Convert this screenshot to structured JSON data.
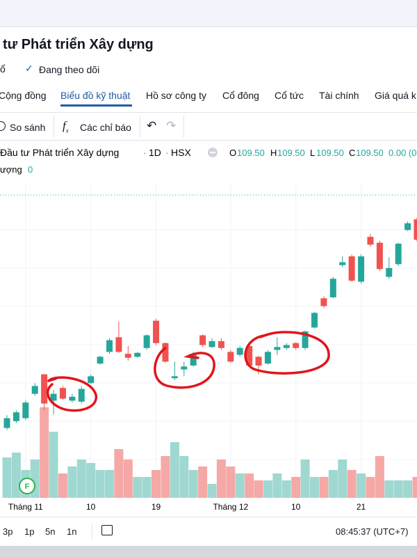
{
  "header": {
    "title": "tư Phát triển Xây dựng",
    "button": "ổ",
    "following": "Đang theo dõi"
  },
  "tabs": [
    "Cộng đồng",
    "Biểu đồ kỹ thuật",
    "Hồ sơ công ty",
    "Cổ đông",
    "Cổ tức",
    "Tài chính",
    "Giá quá k"
  ],
  "toolbar": {
    "compare": "So sánh",
    "indicators": "Các chỉ báo"
  },
  "legend": {
    "symbol": "Đầu tư Phát triển Xây dựng",
    "interval": "1D",
    "exchange": "HSX",
    "o_label": "O",
    "o": "109.50",
    "h_label": "H",
    "h": "109.50",
    "l_label": "L",
    "l": "109.50",
    "c_label": "C",
    "c": "109.50",
    "change": "0.00 (0",
    "volume_label": "ượng",
    "volume": "0"
  },
  "marker": "F",
  "bottom": {
    "ranges": [
      "3p",
      "1p",
      "5n",
      "1n"
    ],
    "time": "08:45:37 (UTC+7)"
  },
  "chart_data": {
    "type": "candlestick",
    "categories": [
      null,
      null,
      "Tháng 11",
      null,
      null,
      null,
      null,
      null,
      null,
      "10",
      null,
      null,
      null,
      null,
      null,
      null,
      "19",
      null,
      null,
      null,
      null,
      null,
      null,
      null,
      "Tháng 12",
      null,
      null,
      null,
      null,
      null,
      null,
      "10",
      null,
      null,
      null,
      null,
      null,
      null,
      "21",
      null,
      null,
      null,
      null,
      null,
      null
    ],
    "open": [
      91.1,
      91.8,
      92.1,
      94.6,
      96.6,
      93.9,
      95.2,
      93.9,
      93.8,
      95.7,
      97.7,
      98.9,
      100.4,
      98.7,
      98.4,
      99.3,
      102.1,
      99.8,
      96.2,
      97.1,
      97.5,
      100.6,
      99.4,
      100.0,
      98.9,
      98.6,
      99.5,
      98.4,
      97.7,
      99.1,
      99.3,
      99.8,
      99.3,
      101.4,
      104.4,
      104.5,
      107.8,
      108.7,
      106.1,
      110.7,
      110.1,
      106.6,
      107.9,
      111.4,
      112.5
    ],
    "high": [
      92.4,
      92.9,
      93.9,
      95.7,
      96.6,
      95.0,
      95.4,
      94.6,
      95.4,
      96.6,
      98.5,
      100.3,
      102.0,
      99.5,
      98.9,
      100.7,
      102.3,
      99.9,
      97.9,
      97.9,
      98.9,
      100.7,
      100.3,
      100.3,
      99.1,
      99.5,
      99.6,
      98.5,
      99.1,
      100.4,
      99.8,
      99.9,
      101.1,
      103.0,
      104.6,
      106.6,
      108.7,
      108.9,
      108.9,
      111.0,
      110.3,
      108.6,
      110.1,
      112.3,
      112.7
    ],
    "low": [
      90.9,
      91.6,
      91.9,
      94.4,
      92.9,
      92.5,
      94.0,
      93.7,
      93.6,
      95.6,
      97.6,
      98.7,
      98.8,
      98.0,
      98.3,
      99.1,
      99.6,
      97.8,
      96.0,
      96.4,
      97.4,
      99.4,
      99.3,
      99.1,
      97.8,
      98.4,
      97.4,
      96.6,
      97.6,
      98.6,
      99.1,
      99.1,
      99.1,
      101.3,
      103.4,
      104.4,
      107.6,
      106.1,
      105.9,
      109.7,
      107.2,
      106.4,
      107.7,
      111.3,
      110.2
    ],
    "close": [
      92.1,
      92.7,
      93.7,
      95.4,
      93.6,
      94.6,
      94.1,
      94.3,
      95.1,
      96.4,
      98.4,
      100.1,
      98.9,
      98.3,
      98.8,
      100.6,
      99.8,
      97.9,
      96.4,
      97.4,
      98.7,
      99.6,
      100.0,
      99.3,
      97.9,
      99.3,
      97.5,
      97.5,
      98.9,
      99.4,
      99.6,
      99.3,
      101.0,
      102.9,
      103.6,
      106.4,
      108.1,
      106.2,
      108.7,
      109.9,
      107.4,
      107.5,
      110.0,
      112.1,
      110.4
    ],
    "volume": [
      58,
      65,
      40,
      55,
      130,
      95,
      35,
      45,
      55,
      50,
      40,
      40,
      70,
      55,
      30,
      30,
      40,
      60,
      80,
      60,
      40,
      45,
      20,
      55,
      45,
      35,
      35,
      25,
      25,
      35,
      25,
      30,
      55,
      30,
      30,
      40,
      55,
      40,
      35,
      30,
      60,
      25,
      25,
      25,
      30
    ],
    "ylim": [
      85,
      115
    ],
    "y2lim": [
      0,
      150
    ],
    "up_color": "#26a69a",
    "down_color": "#ef5350",
    "volume_up_color": "#9fd8d1",
    "volume_down_color": "#f5a8a6"
  }
}
